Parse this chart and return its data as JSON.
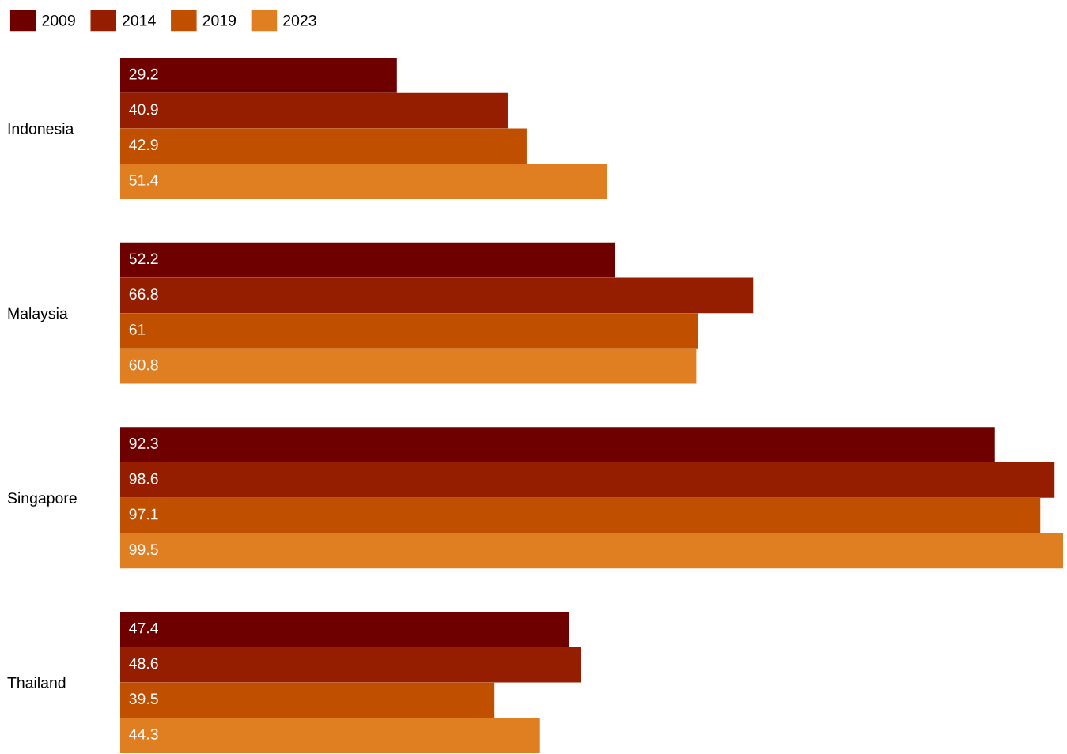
{
  "chart_data": {
    "type": "bar",
    "orientation": "horizontal",
    "categories": [
      "Indonesia",
      "Malaysia",
      "Singapore",
      "Thailand"
    ],
    "series": [
      {
        "name": "2009",
        "color": "#6e0000",
        "values": [
          29.2,
          52.2,
          92.3,
          47.4
        ]
      },
      {
        "name": "2014",
        "color": "#961e00",
        "values": [
          40.9,
          66.8,
          98.6,
          48.6
        ]
      },
      {
        "name": "2019",
        "color": "#c04f00",
        "values": [
          42.9,
          61,
          97.1,
          39.5
        ]
      },
      {
        "name": "2023",
        "color": "#e07e22",
        "values": [
          51.4,
          60.8,
          99.5,
          44.3
        ]
      }
    ],
    "data_labels": true,
    "legend": "top left",
    "grid": false,
    "tick_labels": "y"
  }
}
